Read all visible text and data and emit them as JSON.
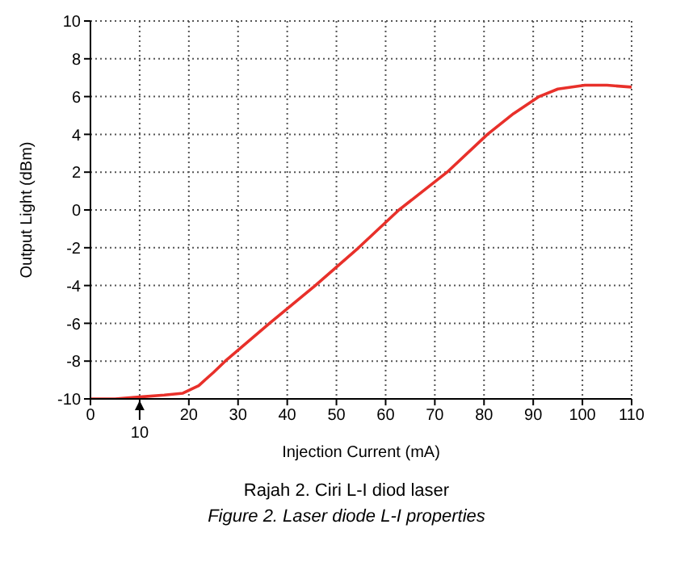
{
  "chart_data": {
    "type": "line",
    "xlabel": "Injection Current  (mA)",
    "ylabel": "Output Light  (dBm)",
    "x": [
      0,
      5,
      10,
      15,
      18.8,
      22,
      25,
      27.4,
      36.4,
      45.7,
      54.5,
      62.7,
      72.5,
      80.7,
      86,
      91.2,
      95,
      100.5,
      105,
      110
    ],
    "series": [
      {
        "color": "#e8302a",
        "values": [
          -10,
          -10,
          -9.9,
          -9.8,
          -9.7,
          -9.3,
          -8.6,
          -8,
          -6,
          -4,
          -2,
          0,
          2,
          4,
          5.1,
          6,
          6.4,
          6.6,
          6.6,
          6.5
        ]
      }
    ],
    "xlim": [
      0,
      110
    ],
    "xticks": [
      0,
      {
        "value": 10,
        "label": null
      },
      20,
      30,
      40,
      50,
      60,
      70,
      80,
      90,
      100,
      110
    ],
    "ylim": [
      -10,
      10
    ],
    "yticks": [
      -10,
      -8,
      -6,
      -4,
      -2,
      0,
      2,
      4,
      6,
      8,
      10
    ],
    "grid": true,
    "marker": "none",
    "line_style": "solid",
    "annotations": [
      {
        "text": "10",
        "x": 10,
        "y": -10
      },
      "Rajah 2. Ciri L-I diod laser",
      "Figure 2. Laser diode L-I properties"
    ]
  }
}
